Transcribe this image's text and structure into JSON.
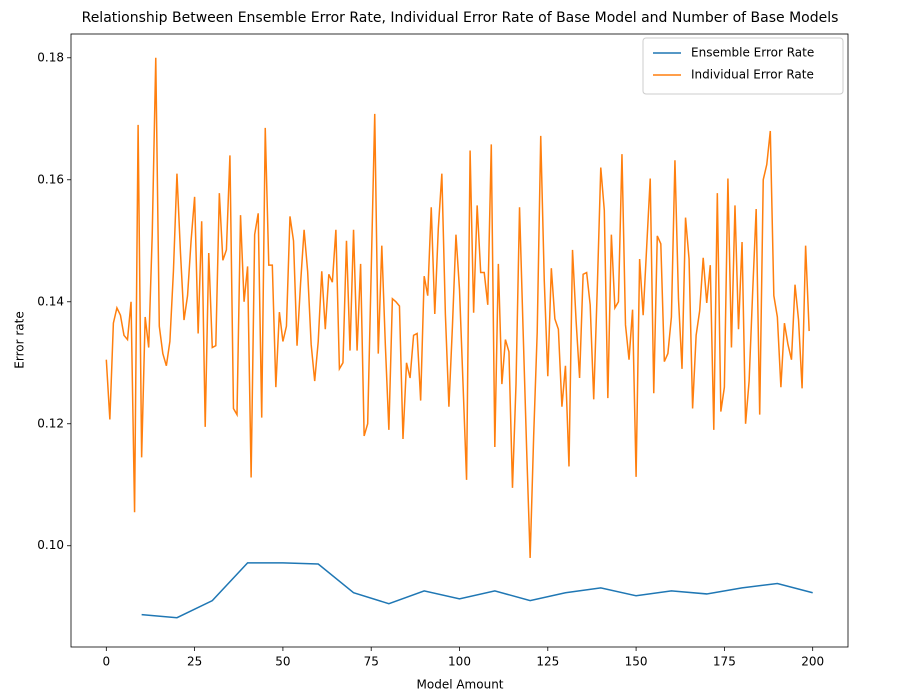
{
  "chart_data": {
    "type": "line",
    "title": "Relationship Between Ensemble Error Rate, Individual Error Rate of Base Model and Number of Base Models",
    "x_label": "Model Amount",
    "y_label": "Error rate",
    "xlim": [
      -10,
      210
    ],
    "ylim": [
      0.0834,
      0.1839
    ],
    "xticks": [
      0,
      25,
      50,
      75,
      100,
      125,
      150,
      175,
      200
    ],
    "yticks": [
      {
        "value": 0.1,
        "label": "0.10"
      },
      0.12,
      0.14,
      0.16,
      0.18
    ],
    "legend": "upper right",
    "series": [
      {
        "name": "Ensemble Error Rate",
        "color": "#1f77b4",
        "x": [
          10,
          20,
          30,
          40,
          50,
          60,
          70,
          80,
          90,
          100,
          110,
          120,
          130,
          140,
          150,
          160,
          170,
          180,
          190,
          200
        ],
        "values": [
          0.0887,
          0.0882,
          0.091,
          0.0972,
          0.0972,
          0.097,
          0.0923,
          0.0905,
          0.0926,
          0.0913,
          0.0926,
          0.091,
          0.0923,
          0.0931,
          0.0918,
          0.0926,
          0.0921,
          0.0931,
          0.0938,
          0.0923
        ]
      },
      {
        "name": "Individual Error Rate",
        "color": "#ff7f0e",
        "x": [
          0,
          1,
          2,
          3,
          4,
          5,
          6,
          7,
          8,
          9,
          10,
          11,
          12,
          13,
          14,
          15,
          16,
          17,
          18,
          19,
          20,
          21,
          22,
          23,
          24,
          25,
          26,
          27,
          28,
          29,
          30,
          31,
          32,
          33,
          34,
          35,
          36,
          37,
          38,
          39,
          40,
          41,
          42,
          43,
          44,
          45,
          46,
          47,
          48,
          49,
          50,
          51,
          52,
          53,
          54,
          55,
          56,
          57,
          58,
          59,
          60,
          61,
          62,
          63,
          64,
          65,
          66,
          67,
          68,
          69,
          70,
          71,
          72,
          73,
          74,
          75,
          76,
          77,
          78,
          79,
          80,
          81,
          82,
          83,
          84,
          85,
          86,
          87,
          88,
          89,
          90,
          91,
          92,
          93,
          94,
          95,
          96,
          97,
          98,
          99,
          100,
          101,
          102,
          103,
          104,
          105,
          106,
          107,
          108,
          109,
          110,
          111,
          112,
          113,
          114,
          115,
          116,
          117,
          118,
          119,
          120,
          121,
          122,
          123,
          124,
          125,
          126,
          127,
          128,
          129,
          130,
          131,
          132,
          133,
          134,
          135,
          136,
          137,
          138,
          139,
          140,
          141,
          142,
          143,
          144,
          145,
          146,
          147,
          148,
          149,
          150,
          151,
          152,
          153,
          154,
          155,
          156,
          157,
          158,
          159,
          160,
          161,
          162,
          163,
          164,
          165,
          166,
          167,
          168,
          169,
          170,
          171,
          172,
          173,
          174,
          175,
          176,
          177,
          178,
          179,
          180,
          181,
          182,
          183,
          184,
          185,
          186,
          187,
          188,
          189,
          190,
          191,
          192,
          193,
          194,
          195,
          196,
          197,
          198,
          199
        ],
        "values": [
          0.1305,
          0.1207,
          0.1365,
          0.139,
          0.1378,
          0.1345,
          0.1338,
          0.14,
          0.1055,
          0.169,
          0.1145,
          0.1375,
          0.1325,
          0.151,
          0.18,
          0.136,
          0.1315,
          0.1295,
          0.1335,
          0.145,
          0.161,
          0.148,
          0.137,
          0.141,
          0.15,
          0.1572,
          0.1348,
          0.1532,
          0.1195,
          0.148,
          0.1325,
          0.1328,
          0.1578,
          0.1468,
          0.1485,
          0.164,
          0.1225,
          0.1215,
          0.1542,
          0.14,
          0.1458,
          0.1112,
          0.151,
          0.1545,
          0.121,
          0.1685,
          0.146,
          0.146,
          0.126,
          0.1383,
          0.1335,
          0.136,
          0.154,
          0.15,
          0.1328,
          0.143,
          0.1518,
          0.145,
          0.133,
          0.127,
          0.1335,
          0.145,
          0.1355,
          0.1445,
          0.1432,
          0.1518,
          0.129,
          0.13,
          0.15,
          0.132,
          0.1518,
          0.132,
          0.1462,
          0.118,
          0.12,
          0.145,
          0.1708,
          0.1315,
          0.1492,
          0.133,
          0.119,
          0.1405,
          0.14,
          0.1393,
          0.1175,
          0.13,
          0.1275,
          0.1345,
          0.1348,
          0.1238,
          0.1442,
          0.141,
          0.1555,
          0.138,
          0.152,
          0.161,
          0.138,
          0.1228,
          0.136,
          0.151,
          0.142,
          0.1265,
          0.1108,
          0.1648,
          0.1382,
          0.1558,
          0.1448,
          0.1448,
          0.1395,
          0.1658,
          0.1162,
          0.1462,
          0.1265,
          0.1338,
          0.1318,
          0.1095,
          0.1265,
          0.1555,
          0.1355,
          0.116,
          0.098,
          0.118,
          0.135,
          0.1672,
          0.1435,
          0.1278,
          0.1455,
          0.1372,
          0.1355,
          0.1228,
          0.1295,
          0.113,
          0.1485,
          0.137,
          0.1275,
          0.1445,
          0.1448,
          0.1395,
          0.124,
          0.142,
          0.162,
          0.155,
          0.1242,
          0.151,
          0.139,
          0.14,
          0.1642,
          0.1362,
          0.1305,
          0.1387,
          0.1113,
          0.147,
          0.1378,
          0.149,
          0.1602,
          0.125,
          0.1508,
          0.1495,
          0.1302,
          0.1315,
          0.1375,
          0.1632,
          0.1405,
          0.129,
          0.1538,
          0.147,
          0.1225,
          0.1345,
          0.1385,
          0.1472,
          0.1398,
          0.146,
          0.119,
          0.1578,
          0.122,
          0.126,
          0.1602,
          0.1325,
          0.1558,
          0.1355,
          0.1498,
          0.12,
          0.127,
          0.1415,
          0.1552,
          0.1215,
          0.16,
          0.1625,
          0.168,
          0.141,
          0.1375,
          0.126,
          0.1365,
          0.133,
          0.1305,
          0.1428,
          0.137,
          0.1258,
          0.1492,
          0.1352
        ]
      }
    ]
  }
}
